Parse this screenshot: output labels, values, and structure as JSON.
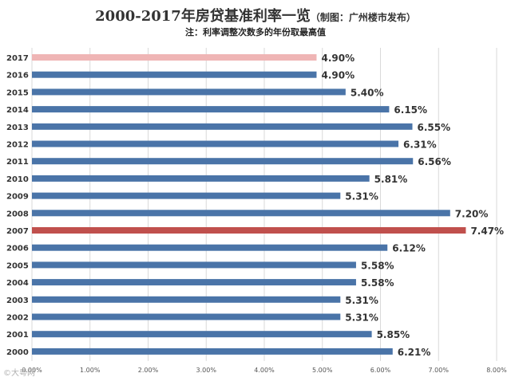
{
  "title": "2000-2017年房贷基准利率一览",
  "subtitle": "（制图：广州楼市发布）",
  "note": "注：利率调整次数多的年份取最高值",
  "watermark": "©大粤网",
  "colors": {
    "default": "#4a74a8",
    "highlight_2017": "#efb5b5",
    "highlight_2007": "#c0504d",
    "grid": "#d9d9d9"
  },
  "chart_data": {
    "type": "bar",
    "orientation": "horizontal",
    "title": "2000-2017年房贷基准利率一览（制图：广州楼市发布）",
    "subtitle": "注：利率调整次数多的年份取最高值",
    "categories": [
      "2017",
      "2016",
      "2015",
      "2014",
      "2013",
      "2012",
      "2011",
      "2010",
      "2009",
      "2008",
      "2007",
      "2006",
      "2005",
      "2004",
      "2003",
      "2002",
      "2001",
      "2000"
    ],
    "values": [
      4.9,
      4.9,
      5.4,
      6.15,
      6.55,
      6.31,
      6.56,
      5.81,
      5.31,
      7.2,
      7.47,
      6.12,
      5.58,
      5.58,
      5.31,
      5.31,
      5.85,
      6.21
    ],
    "data_labels": [
      "4.90%",
      "4.90%",
      "5.40%",
      "6.15%",
      "6.55%",
      "6.31%",
      "6.56%",
      "5.81%",
      "5.31%",
      "7.20%",
      "7.47%",
      "6.12%",
      "5.58%",
      "5.58%",
      "5.31%",
      "5.31%",
      "5.85%",
      "6.21%"
    ],
    "xlim": [
      0,
      8
    ],
    "xticks": [
      0,
      1,
      2,
      3,
      4,
      5,
      6,
      7,
      8
    ],
    "xtick_labels": [
      "0.00%",
      "1.00%",
      "2.00%",
      "3.00%",
      "4.00%",
      "5.00%",
      "6.00%",
      "7.00%",
      "8.00%"
    ],
    "xlabel": "",
    "ylabel": "",
    "grid": true,
    "legend": "none",
    "highlighted": {
      "2017": "highlight_2017",
      "2007": "highlight_2007"
    }
  }
}
